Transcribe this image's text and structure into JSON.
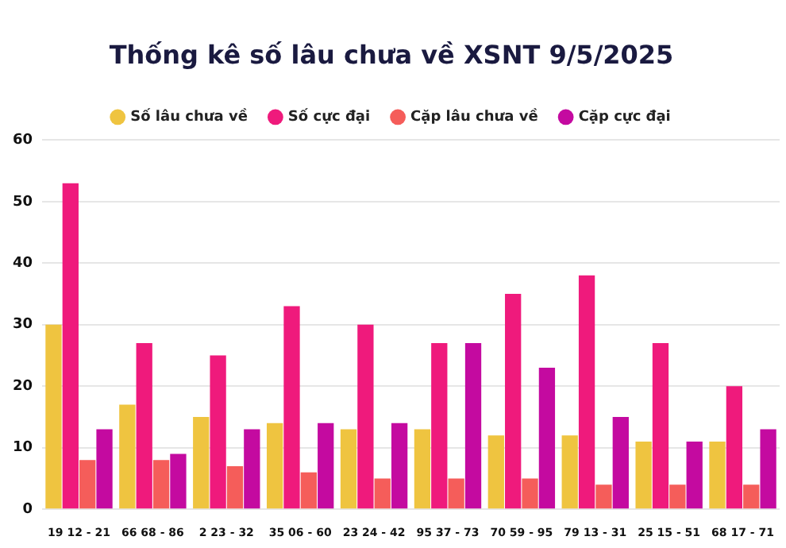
{
  "chart_data": {
    "type": "bar",
    "title": "Thống kê số lâu chưa về XSNT 9/5/2025",
    "categories": [
      "19 12 - 21",
      "66 68 - 86",
      "2 23 - 32",
      "35 06 - 60",
      "23 24 - 42",
      "95 37 - 73",
      "70 59 - 95",
      "79 13 - 31",
      "25 15 - 51",
      "68 17 - 71"
    ],
    "series": [
      {
        "name": "Số lâu chưa về",
        "color": "#efc440",
        "values": [
          30,
          17,
          15,
          14,
          13,
          13,
          12,
          12,
          11,
          11
        ]
      },
      {
        "name": "Số cực đại",
        "color": "#ef1a7c",
        "values": [
          53,
          27,
          25,
          33,
          30,
          27,
          35,
          38,
          27,
          20
        ]
      },
      {
        "name": "Cặp lâu chưa về",
        "color": "#f55d5a",
        "values": [
          8,
          8,
          7,
          6,
          5,
          5,
          5,
          4,
          4,
          4
        ]
      },
      {
        "name": "Cặp cực đại",
        "color": "#c40aa0",
        "values": [
          13,
          9,
          13,
          14,
          14,
          27,
          23,
          15,
          11,
          13
        ]
      }
    ],
    "ylim": [
      0,
      60
    ],
    "yticks": [
      0,
      10,
      20,
      30,
      40,
      50,
      60
    ],
    "grid": "y",
    "legend": "top"
  }
}
